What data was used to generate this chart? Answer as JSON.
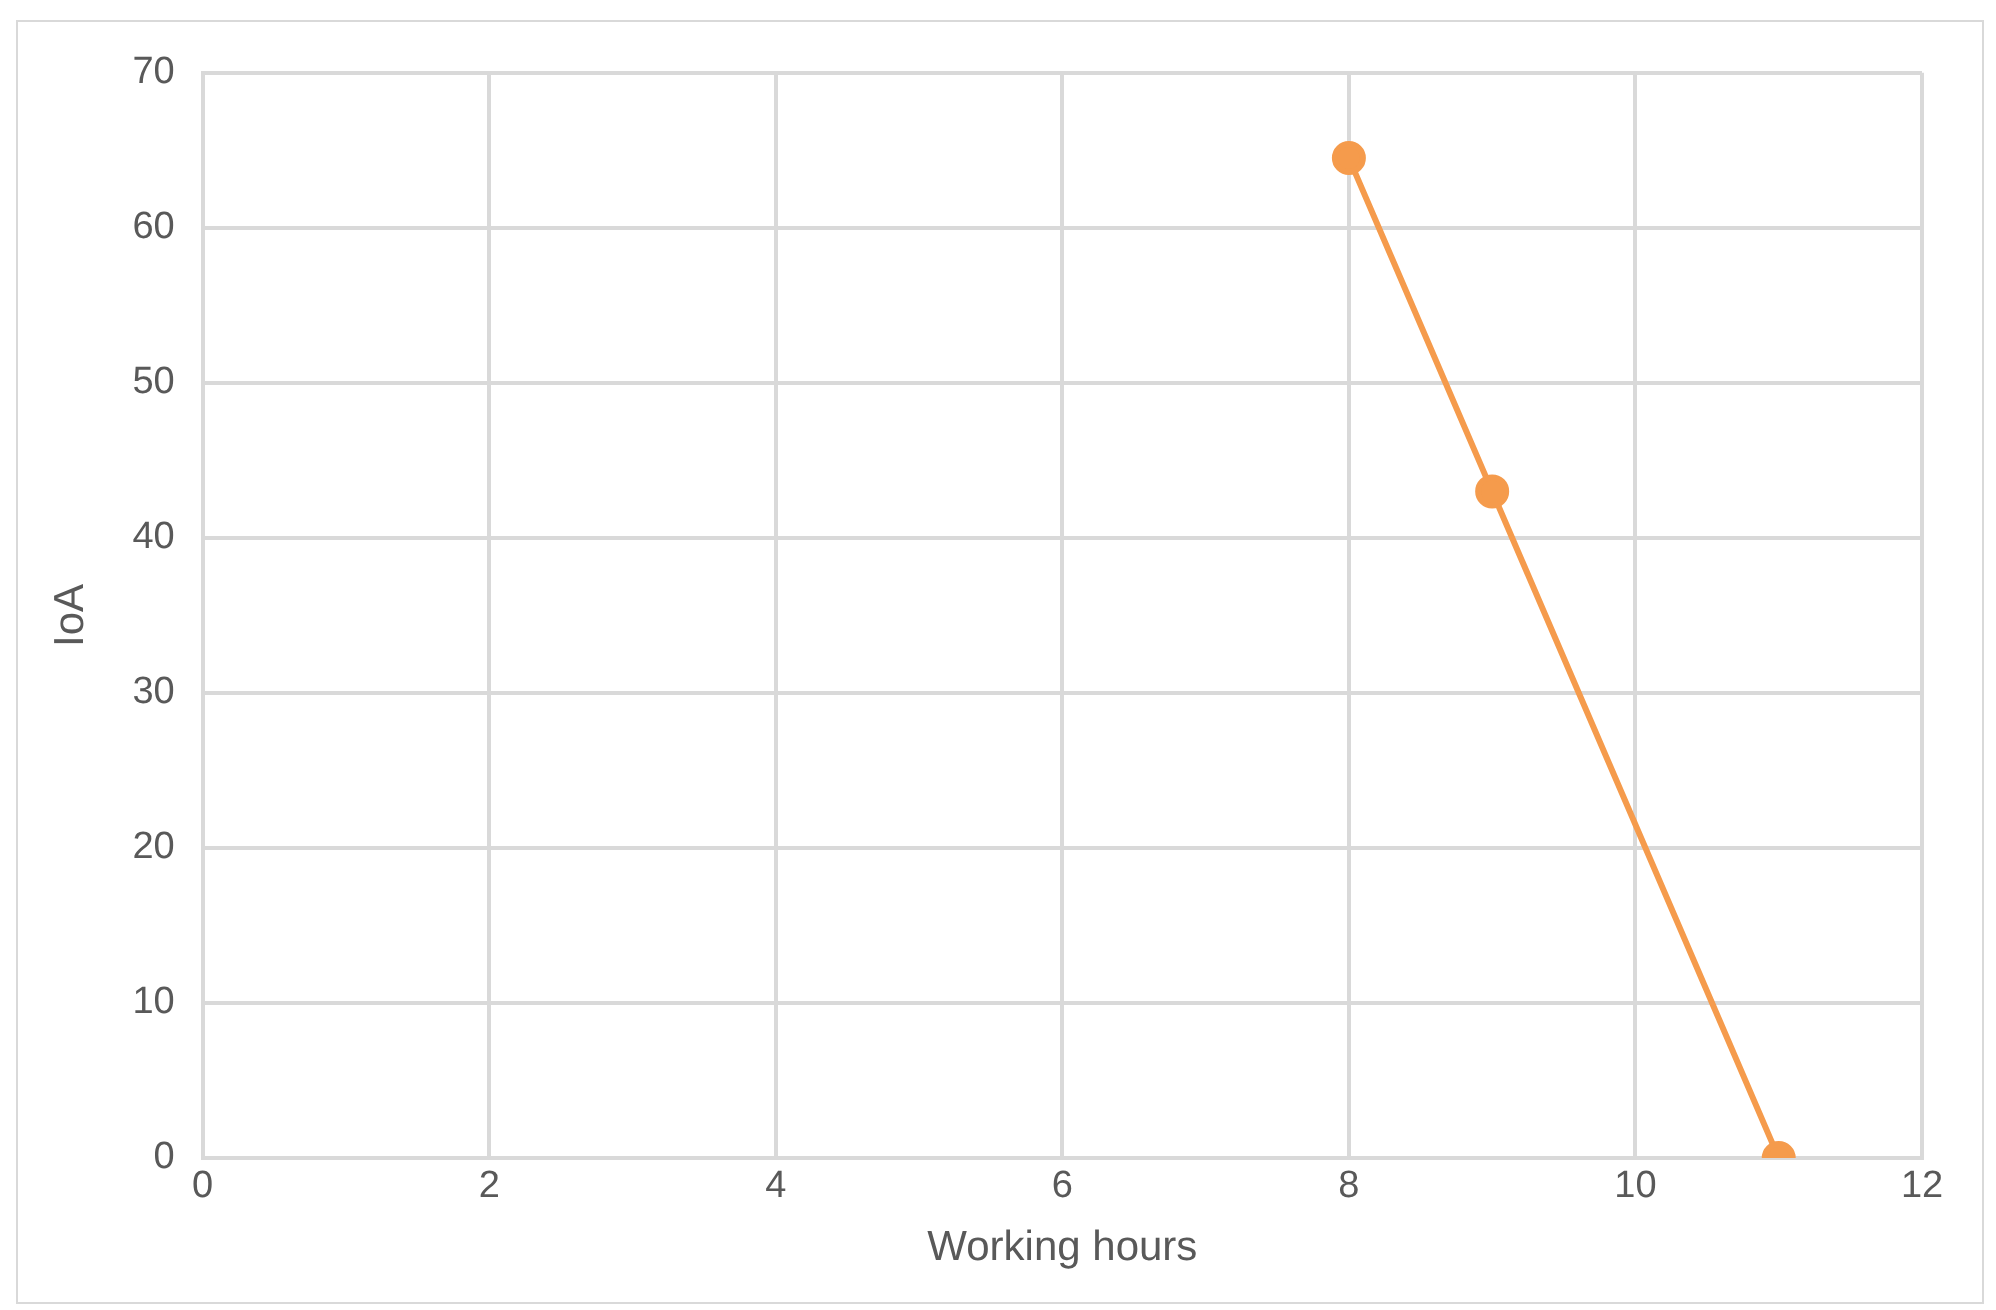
{
  "chart_data": {
    "type": "line",
    "xlabel": "Working hours",
    "ylabel": "IoA",
    "x": [
      8,
      9,
      11
    ],
    "series": [
      {
        "color": "#f59b4c",
        "values": [
          64.5,
          43,
          0
        ]
      }
    ],
    "xlim": [
      0,
      12
    ],
    "xticks": [
      0,
      2,
      4,
      6,
      8,
      10,
      12
    ],
    "ylim": [
      0,
      70
    ],
    "yticks": [
      0,
      10,
      20,
      30,
      40,
      50,
      60,
      70
    ],
    "grid": true,
    "legend": false,
    "marker": "circle",
    "line_style": "solid"
  }
}
